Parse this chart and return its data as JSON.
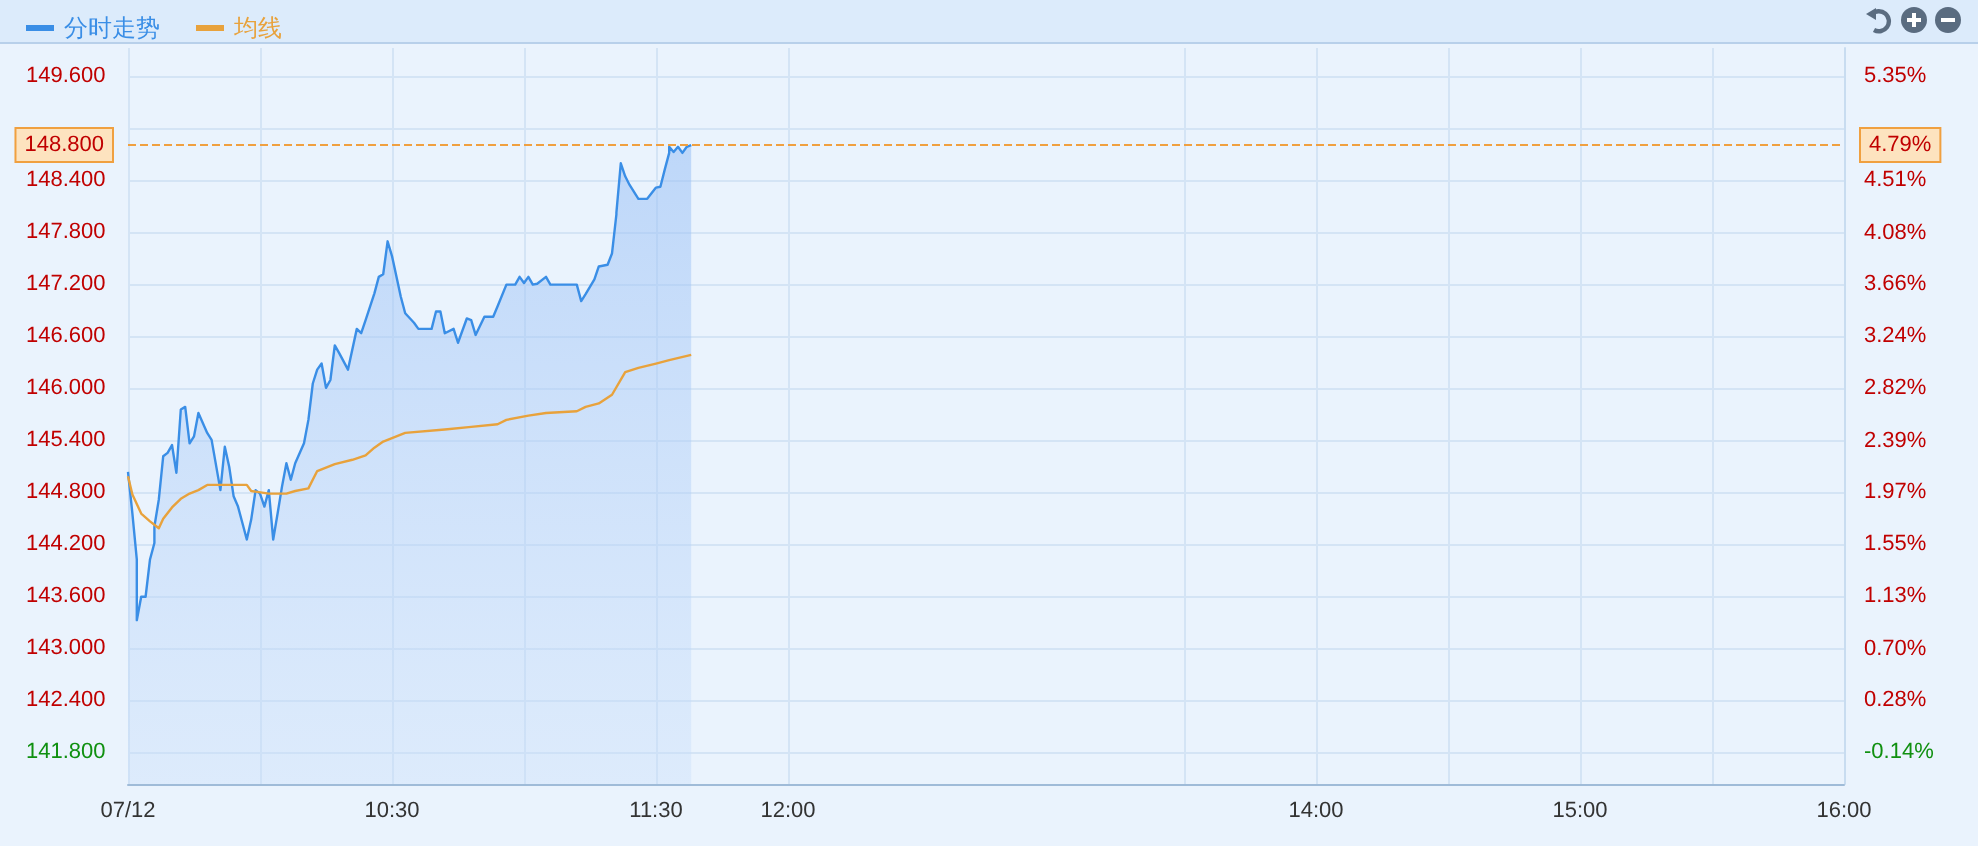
{
  "chart_data": {
    "type": "area",
    "x": [
      "--07-12T09:30",
      "--07-12T09:31",
      "--07-12T09:32",
      "--07-12T09:32",
      "--07-12T09:33",
      "--07-12T09:34",
      "--07-12T09:35",
      "--07-12T09:36",
      "--07-12T09:36",
      "--07-12T09:37",
      "--07-12T09:38",
      "--07-12T09:39",
      "--07-12T09:40",
      "--07-12T09:41",
      "--07-12T09:42",
      "--07-12T09:43",
      "--07-12T09:44",
      "--07-12T09:45",
      "--07-12T09:46",
      "--07-12T09:48",
      "--07-12T09:49",
      "--07-12T09:51",
      "--07-12T09:52",
      "--07-12T09:53",
      "--07-12T09:54",
      "--07-12T09:55",
      "--07-12T09:56",
      "--07-12T09:57",
      "--07-12T09:58",
      "--07-12T09:59",
      "--07-12T10:00",
      "--07-12T10:01",
      "--07-12T10:02",
      "--07-12T10:03",
      "--07-12T10:04",
      "--07-12T10:05",
      "--07-12T10:06",
      "--07-12T10:07",
      "--07-12T10:08",
      "--07-12T10:10",
      "--07-12T10:11",
      "--07-12T10:12",
      "--07-12T10:13",
      "--07-12T10:14",
      "--07-12T10:15",
      "--07-12T10:16",
      "--07-12T10:17",
      "--07-12T10:18",
      "--07-12T10:20",
      "--07-12T10:22",
      "--07-12T10:23",
      "--07-12T10:24",
      "--07-12T10:26",
      "--07-12T10:27",
      "--07-12T10:28",
      "--07-12T10:29",
      "--07-12T10:30",
      "--07-12T10:32",
      "--07-12T10:33",
      "--07-12T10:35",
      "--07-12T10:36",
      "--07-12T10:39",
      "--07-12T10:40",
      "--07-12T10:41",
      "--07-12T10:42",
      "--07-12T10:44",
      "--07-12T10:45",
      "--07-12T10:47",
      "--07-12T10:48",
      "--07-12T10:49",
      "--07-12T10:51",
      "--07-12T10:53",
      "--07-12T10:54",
      "--07-12T10:56",
      "--07-12T10:58",
      "--07-12T10:59",
      "--07-12T11:00",
      "--07-12T11:01",
      "--07-12T11:02",
      "--07-12T11:03",
      "--07-12T11:05",
      "--07-12T11:06",
      "--07-12T11:12",
      "--07-12T11:13",
      "--07-12T11:14",
      "--07-12T11:16",
      "--07-12T11:17",
      "--07-12T11:19",
      "--07-12T11:20",
      "--07-12T11:21",
      "--07-12T11:21",
      "--07-12T11:22",
      "--07-12T11:23",
      "--07-12T11:24",
      "--07-12T11:26",
      "--07-12T11:28",
      "--07-12T11:30",
      "--07-12T11:31",
      "--07-12T11:32",
      "--07-12T11:33",
      "--07-12T11:33",
      "--07-12T11:34",
      "--07-12T11:35",
      "--07-12T11:36",
      "--07-12T11:37",
      "--07-12T11:38"
    ],
    "series": [
      {
        "name": "分时走势",
        "color": "#3a8ee6",
        "values": [
          145.03,
          144.55,
          144.02,
          143.32,
          143.59,
          143.59,
          144.02,
          144.21,
          144.4,
          144.71,
          145.21,
          145.25,
          145.34,
          145.02,
          145.75,
          145.78,
          145.36,
          145.44,
          145.71,
          145.48,
          145.4,
          144.82,
          145.32,
          145.09,
          144.75,
          144.63,
          144.44,
          144.25,
          144.48,
          144.82,
          144.78,
          144.63,
          144.82,
          144.25,
          144.55,
          144.86,
          145.13,
          144.94,
          145.13,
          145.36,
          145.63,
          146.05,
          146.21,
          146.28,
          146.0,
          146.09,
          146.49,
          146.4,
          146.21,
          146.68,
          146.63,
          146.78,
          147.09,
          147.28,
          147.31,
          147.69,
          147.52,
          147.05,
          146.86,
          146.75,
          146.68,
          146.68,
          146.88,
          146.88,
          146.63,
          146.68,
          146.52,
          146.8,
          146.78,
          146.61,
          146.82,
          146.82,
          146.94,
          147.19,
          147.19,
          147.28,
          147.21,
          147.28,
          147.19,
          147.2,
          147.28,
          147.19,
          147.19,
          147.0,
          147.08,
          147.25,
          147.4,
          147.42,
          147.55,
          148.0,
          148.02,
          148.59,
          148.44,
          148.34,
          148.18,
          148.18,
          148.31,
          148.32,
          148.52,
          148.71,
          148.78,
          148.72,
          148.78,
          148.71,
          148.78,
          148.8
        ]
      },
      {
        "name": "均线",
        "type": "line",
        "color": "#e8a23c",
        "x": [
          "--07-12T09:30",
          "--07-12T09:31",
          "--07-12T09:33",
          "--07-12T09:35",
          "--07-12T09:37",
          "--07-12T09:38",
          "--07-12T09:40",
          "--07-12T09:42",
          "--07-12T09:44",
          "--07-12T09:46",
          "--07-12T09:48",
          "--07-12T09:51",
          "--07-12T09:57",
          "--07-12T09:58",
          "--07-12T10:02",
          "--07-12T10:06",
          "--07-12T10:08",
          "--07-12T10:11",
          "--07-12T10:13",
          "--07-12T10:17",
          "--07-12T10:21",
          "--07-12T10:24",
          "--07-12T10:26",
          "--07-12T10:28",
          "--07-12T10:30",
          "--07-12T10:33",
          "--07-12T10:42",
          "--07-12T10:48",
          "--07-12T10:54",
          "--07-12T10:56",
          "--07-12T11:01",
          "--07-12T11:05",
          "--07-12T11:12",
          "--07-12T11:14",
          "--07-12T11:17",
          "--07-12T11:20",
          "--07-12T11:23",
          "--07-12T11:26",
          "--07-12T11:30",
          "--07-12T11:33",
          "--07-12T11:38"
        ],
        "values": [
          144.98,
          144.77,
          144.55,
          144.46,
          144.38,
          144.49,
          144.62,
          144.72,
          144.78,
          144.82,
          144.88,
          144.88,
          144.88,
          144.81,
          144.78,
          144.78,
          144.81,
          144.84,
          145.04,
          145.12,
          145.17,
          145.22,
          145.31,
          145.38,
          145.42,
          145.48,
          145.52,
          145.55,
          145.58,
          145.63,
          145.68,
          145.71,
          145.73,
          145.78,
          145.82,
          145.92,
          146.18,
          146.23,
          146.28,
          146.32,
          146.38
        ]
      }
    ],
    "xlim": [
      "--07-12T09:30",
      "--07-12T16:00"
    ],
    "xticks": [
      {
        "value": "--07-12T09:30",
        "label": "07/12"
      },
      {
        "value": "--07-12T10:00",
        "label": null
      },
      {
        "value": "--07-12T10:30",
        "label": "10:30"
      },
      {
        "value": "--07-12T11:00",
        "label": null
      },
      {
        "value": "--07-12T11:30",
        "label": "11:30"
      },
      {
        "value": "--07-12T12:00",
        "label": "12:00"
      },
      {
        "value": "--07-12T13:30",
        "label": null
      },
      {
        "value": "--07-12T14:00",
        "label": "14:00"
      },
      {
        "value": "--07-12T14:30",
        "label": null
      },
      {
        "value": "--07-12T15:00",
        "label": "15:00"
      },
      {
        "value": "--07-12T15:30",
        "label": null
      },
      {
        "value": "--07-12T16:00",
        "label": "16:00"
      }
    ],
    "ylim": [
      141.43,
      149.92
    ],
    "yticks": [
      {
        "value": 141.8,
        "label": "141.800"
      },
      {
        "value": 142.4,
        "label": "142.400"
      },
      {
        "value": 143.0,
        "label": "143.000"
      },
      {
        "value": 143.6,
        "label": "143.600"
      },
      {
        "value": 144.2,
        "label": "144.200"
      },
      {
        "value": 144.8,
        "label": "144.800"
      },
      {
        "value": 145.4,
        "label": "145.400"
      },
      {
        "value": 146.0,
        "label": "146.000"
      },
      {
        "value": 146.6,
        "label": "146.600"
      },
      {
        "value": 147.2,
        "label": "147.200"
      },
      {
        "value": 147.8,
        "label": "147.800"
      },
      {
        "value": 148.4,
        "label": "148.400"
      },
      {
        "value": 149.0,
        "label": null
      },
      {
        "value": 149.6,
        "label": "149.600"
      }
    ],
    "y2lim": [
      -0.4,
      5.58
    ],
    "y2ticks": [
      {
        "value": -0.14,
        "label": "-0.14%"
      },
      {
        "value": 0.28,
        "label": "0.28%"
      },
      {
        "value": 0.7,
        "label": "0.70%"
      },
      {
        "value": 1.13,
        "label": "1.13%"
      },
      {
        "value": 1.55,
        "label": "1.55%"
      },
      {
        "value": 1.97,
        "label": "1.97%"
      },
      {
        "value": 2.39,
        "label": "2.39%"
      },
      {
        "value": 2.82,
        "label": "2.82%"
      },
      {
        "value": 3.24,
        "label": "3.24%"
      },
      {
        "value": 3.66,
        "label": "3.66%"
      },
      {
        "value": 4.08,
        "label": "4.08%"
      },
      {
        "value": 4.51,
        "label": "4.51%"
      },
      {
        "value": 4.93,
        "label": null
      },
      {
        "value": 5.35,
        "label": "5.35%"
      }
    ],
    "ref_lines": [
      {
        "axis": "y",
        "value": 148.8,
        "label": "148.800",
        "color": "#f0a040",
        "line_style": "dashed"
      }
    ],
    "annotations": [
      "4.79%"
    ],
    "grid": true,
    "legend": "top left",
    "marker": "none"
  }
}
